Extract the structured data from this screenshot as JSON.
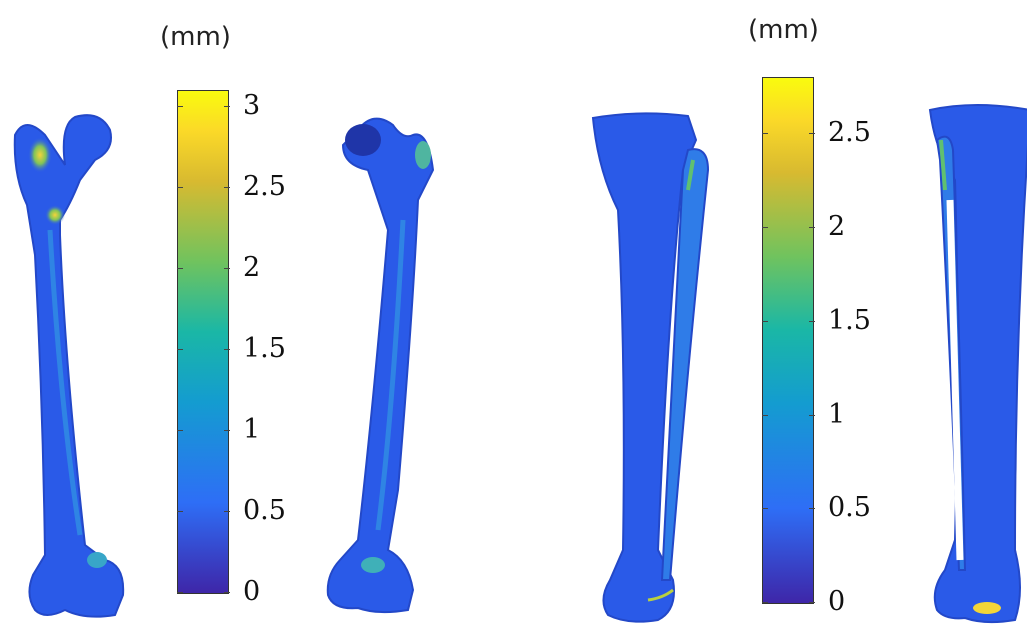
{
  "femur_panel": {
    "unit_label": "(mm)",
    "colorbar": {
      "min": 0,
      "max": 3.1,
      "ticks": [
        "3",
        "2.5",
        "2",
        "1.5",
        "1",
        "0.5",
        "0"
      ],
      "tick_values": [
        3,
        2.5,
        2,
        1.5,
        1,
        0.5,
        0
      ]
    },
    "views": [
      "femur-anterior-view",
      "femur-posterior-view"
    ]
  },
  "tibia_panel": {
    "unit_label": "(mm)",
    "colorbar": {
      "min": 0,
      "max": 2.8,
      "ticks": [
        "2.5",
        "2",
        "1.5",
        "1",
        "0.5",
        "0"
      ],
      "tick_values": [
        2.5,
        2,
        1.5,
        1,
        0.5,
        0
      ]
    },
    "views": [
      "tibia-fibula-anterior-view",
      "tibia-fibula-posterior-view"
    ]
  },
  "colormap": [
    "#3e26a8",
    "#2e6ef6",
    "#149cd0",
    "#1ab7a6",
    "#70c35e",
    "#d8ba30",
    "#fbd928",
    "#f9fb0e"
  ],
  "bone_color": "#2a5ae8"
}
